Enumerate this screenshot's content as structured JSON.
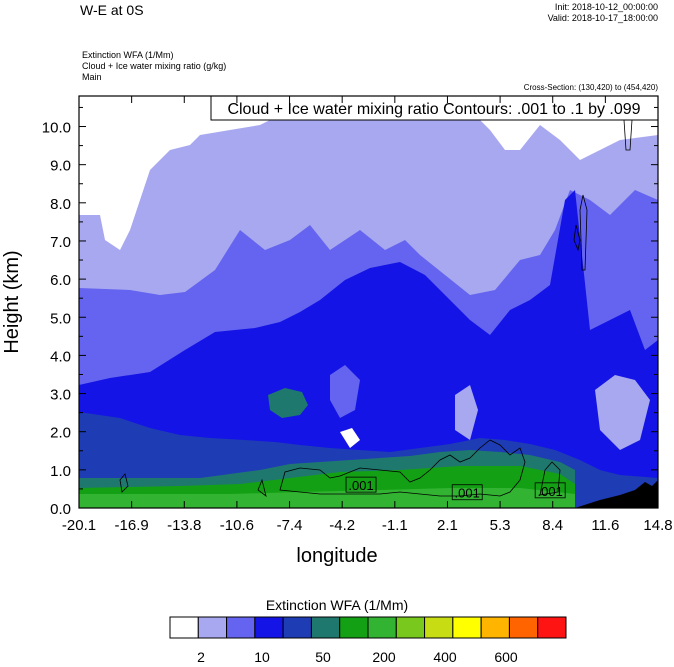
{
  "header": {
    "title": "W-E at 0S",
    "init": "Init: 2018-10-12_00:00:00",
    "valid": "Valid: 2018-10-17_18:00:00",
    "fields": [
      "Extinction WFA   (1/Mm)",
      "Cloud + Ice water mixing ratio   (g/kg)",
      "Main"
    ],
    "cross_section": "Cross-Section: (130,420) to (454,420)"
  },
  "chart_data": {
    "type": "heatmap",
    "title": "",
    "annotation": "Cloud + Ice water mixing ratio Contours: .001 to .1 by .099",
    "xlabel": "longitude",
    "ylabel": "Height (km)",
    "xlim": [
      -20.1,
      14.8
    ],
    "ylim": [
      0.0,
      10.8
    ],
    "x_ticks": [
      "-20.1",
      "-16.9",
      "-13.8",
      "-10.6",
      "-7.4",
      "-4.2",
      "-1.1",
      "2.1",
      "5.3",
      "8.4",
      "11.6",
      "14.8"
    ],
    "y_ticks": [
      "0.0",
      "1.0",
      "2.0",
      "3.0",
      "4.0",
      "5.0",
      "6.0",
      "7.0",
      "8.0",
      "9.0",
      "10.0"
    ],
    "contour_labels": [
      {
        "text": ".001",
        "x": -3.1,
        "y": 0.6
      },
      {
        "text": ".001",
        "x": 3.3,
        "y": 0.4
      },
      {
        "text": ".001",
        "x": 8.3,
        "y": 0.45
      }
    ],
    "colorbar": {
      "title": "Extinction WFA  (1/Mm)",
      "colors": [
        "#ffffff",
        "#a8a8f0",
        "#6464f0",
        "#1414e6",
        "#1e3cb4",
        "#1e786e",
        "#14a014",
        "#32b432",
        "#78c81e",
        "#c8dc14",
        "#ffff00",
        "#ffb400",
        "#ff6400",
        "#ff1414"
      ],
      "labels": [
        "2",
        "10",
        "50",
        "200",
        "400",
        "600"
      ]
    }
  }
}
